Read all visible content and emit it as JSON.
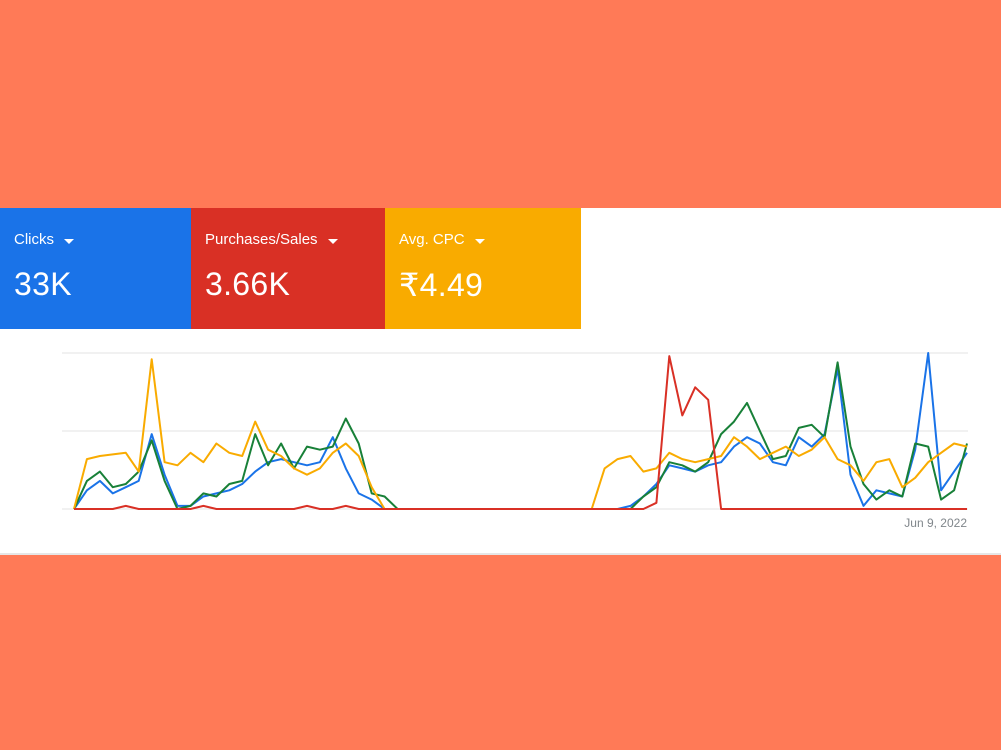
{
  "metrics": [
    {
      "id": "clicks",
      "label": "Clicks",
      "value": "33K",
      "color": "#1a73e8"
    },
    {
      "id": "purchases",
      "label": "Purchases/Sales",
      "value": "3.66K",
      "color": "#d93025"
    },
    {
      "id": "cpc",
      "label": "Avg. CPC",
      "value": "₹4.49",
      "color": "#f9ab00"
    }
  ],
  "chart_data": {
    "type": "line",
    "grid": true,
    "x_end_label": "Jun 9, 2022",
    "ylim": [
      0,
      100
    ],
    "series": [
      {
        "color": "#1a73e8",
        "values": [
          0,
          12,
          18,
          10,
          14,
          18,
          48,
          22,
          2,
          2,
          8,
          10,
          12,
          16,
          24,
          30,
          32,
          30,
          28,
          30,
          46,
          26,
          10,
          6,
          0,
          0,
          0,
          0,
          0,
          0,
          0,
          0,
          0,
          0,
          0,
          0,
          0,
          0,
          0,
          0,
          0,
          0,
          0,
          2,
          8,
          16,
          28,
          26,
          24,
          28,
          30,
          40,
          46,
          42,
          30,
          28,
          46,
          40,
          48,
          90,
          22,
          2,
          12,
          10,
          8,
          38,
          100,
          12,
          24,
          36
        ]
      },
      {
        "color": "#188038",
        "values": [
          0,
          18,
          24,
          14,
          16,
          24,
          44,
          18,
          0,
          2,
          10,
          8,
          16,
          18,
          48,
          28,
          42,
          26,
          40,
          38,
          40,
          58,
          42,
          10,
          8,
          0,
          0,
          0,
          0,
          0,
          0,
          0,
          0,
          0,
          0,
          0,
          0,
          0,
          0,
          0,
          0,
          0,
          0,
          0,
          8,
          14,
          30,
          28,
          24,
          30,
          48,
          56,
          68,
          50,
          32,
          34,
          52,
          54,
          46,
          94,
          40,
          16,
          6,
          12,
          8,
          42,
          40,
          6,
          12,
          42
        ]
      },
      {
        "color": "#f9ab00",
        "values": [
          0,
          32,
          34,
          35,
          36,
          24,
          96,
          30,
          28,
          36,
          30,
          42,
          36,
          34,
          56,
          38,
          34,
          26,
          22,
          26,
          36,
          42,
          34,
          14,
          0,
          0,
          0,
          0,
          0,
          0,
          0,
          0,
          0,
          0,
          0,
          0,
          0,
          0,
          0,
          0,
          0,
          26,
          32,
          34,
          24,
          26,
          36,
          32,
          30,
          32,
          34,
          46,
          40,
          32,
          36,
          40,
          34,
          38,
          46,
          32,
          28,
          18,
          30,
          32,
          14,
          20,
          30,
          36,
          42,
          40
        ]
      },
      {
        "color": "#d93025",
        "values": [
          0,
          0,
          0,
          0,
          2,
          0,
          0,
          0,
          0,
          0,
          2,
          0,
          0,
          0,
          0,
          0,
          0,
          0,
          2,
          0,
          0,
          2,
          0,
          0,
          0,
          0,
          0,
          0,
          0,
          0,
          0,
          0,
          0,
          0,
          0,
          0,
          0,
          0,
          0,
          0,
          0,
          0,
          0,
          0,
          0,
          4,
          98,
          60,
          78,
          70,
          0,
          0,
          0,
          0,
          0,
          0,
          0,
          0,
          0,
          0,
          0,
          0,
          0,
          0,
          0,
          0,
          0,
          0,
          0,
          0
        ]
      }
    ]
  }
}
